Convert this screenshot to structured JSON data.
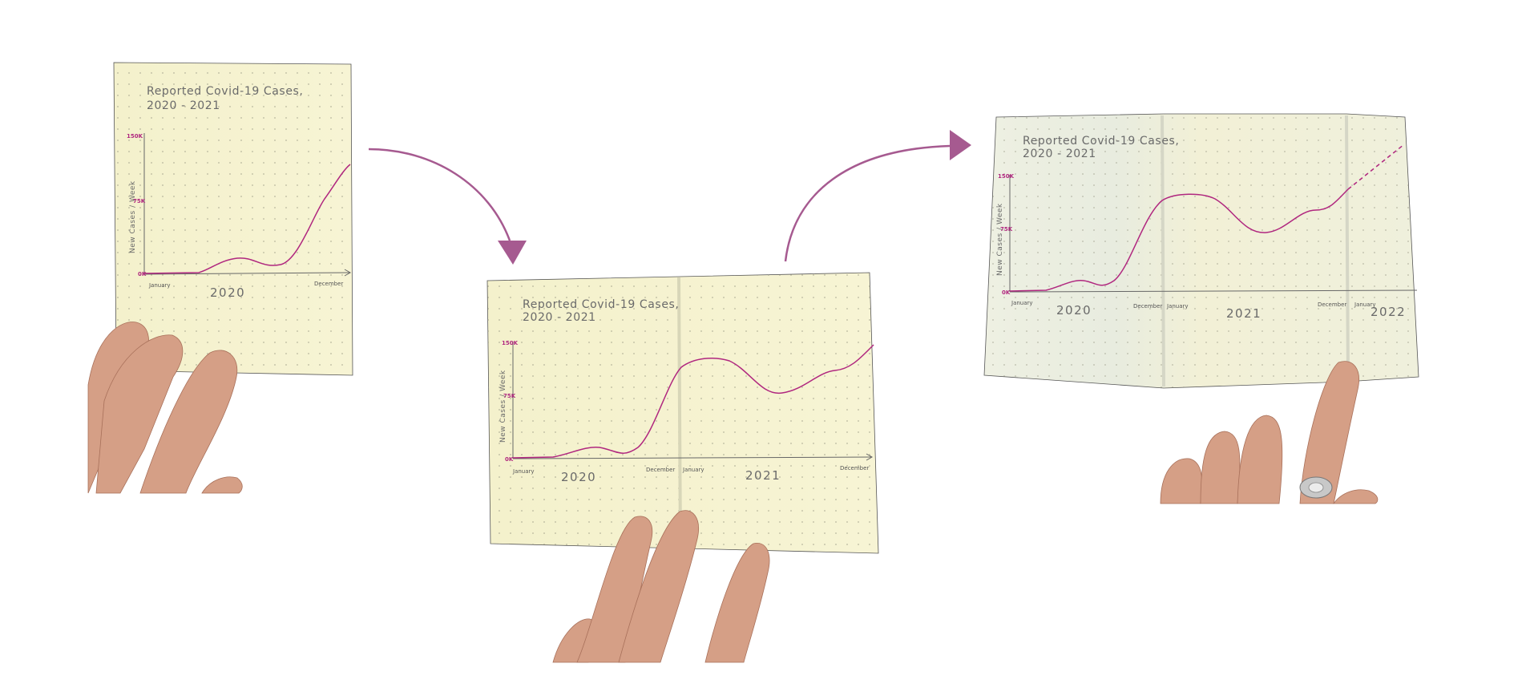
{
  "panels": [
    {
      "title_line1": "Reported Covid-19 Cases,",
      "title_line2": "2020 - 2021",
      "y_label": "New Cases / Week",
      "y_ticks": [
        "150K",
        "75K",
        "0K"
      ],
      "month_labels": [
        "January",
        "December"
      ],
      "years": [
        "2020"
      ]
    },
    {
      "title_line1": "Reported Covid-19 Cases,",
      "title_line2": "2020 - 2021",
      "y_label": "New Cases / Week",
      "y_ticks": [
        "150K",
        "75K",
        "0K"
      ],
      "month_labels": [
        "January",
        "December",
        "January",
        "December"
      ],
      "years": [
        "2020",
        "2021"
      ]
    },
    {
      "title_line1": "Reported Covid-19 Cases,",
      "title_line2": "2020 - 2021",
      "y_label": "New Cases / Week",
      "y_ticks": [
        "150K",
        "75K",
        "0K"
      ],
      "month_labels": [
        "January",
        "December",
        "January",
        "December",
        "January"
      ],
      "years": [
        "2020",
        "2021",
        "2022"
      ]
    }
  ],
  "colors": {
    "paper": "#f6f2cf",
    "paper_shadow": "#e3e2c8",
    "line": "#b0277f",
    "arrow": "#a65a90",
    "skin": "#d9a48a"
  }
}
